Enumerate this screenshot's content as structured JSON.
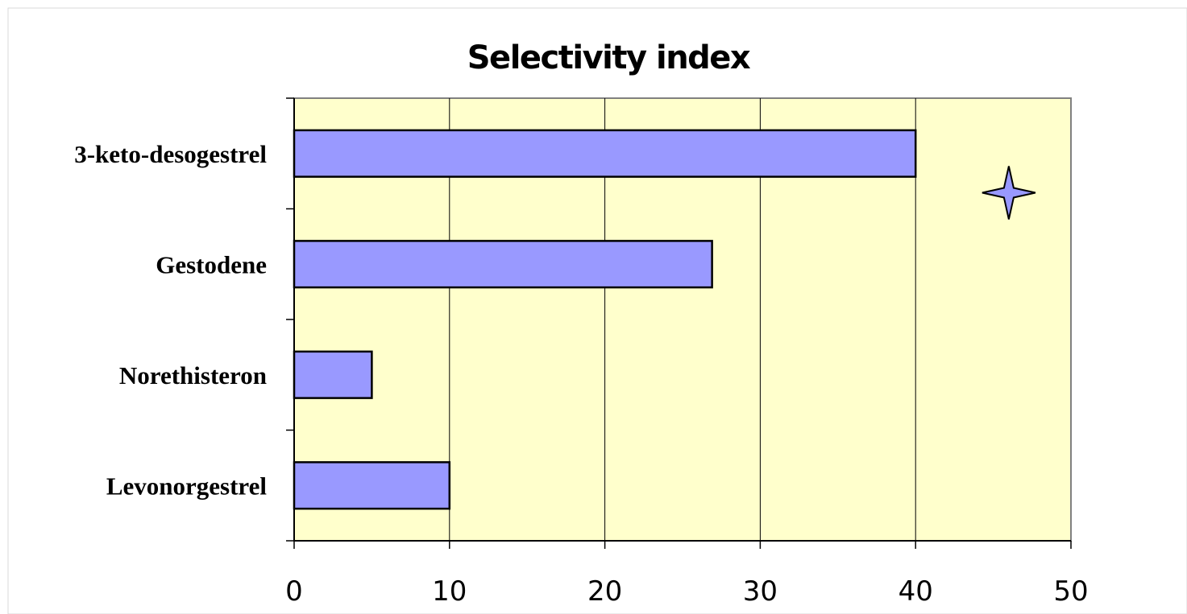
{
  "chart_data": {
    "type": "bar",
    "orientation": "horizontal",
    "title": "Selectivity index",
    "categories": [
      "3-keto-desogestrel",
      "Gestodene",
      "Norethisteron",
      "Levonorgestrel"
    ],
    "values": [
      40,
      26.9,
      5,
      10
    ],
    "xlim": [
      0,
      50
    ],
    "xticks": [
      "0",
      "10",
      "20",
      "30",
      "40",
      "50"
    ],
    "xlabel": "",
    "ylabel": "",
    "grid": "vertical",
    "legend": "none",
    "marker": {
      "shape": "four-point-star",
      "x": 46,
      "y_between": [
        "3-keto-desogestrel",
        "Gestodene"
      ]
    },
    "colors": {
      "bar_fill": "#9999ff",
      "bar_stroke": "#000000",
      "plot_background": "#ffffcc",
      "marker_fill": "#9999ff"
    }
  }
}
